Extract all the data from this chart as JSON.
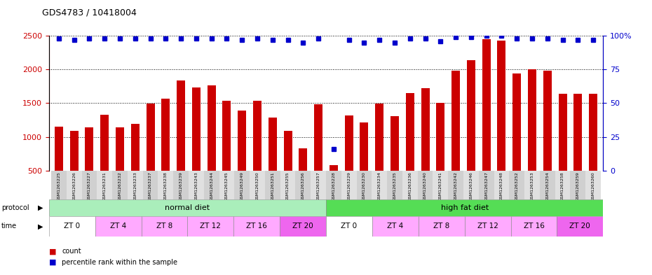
{
  "title": "GDS4783 / 10418004",
  "samples": [
    "GSM1263225",
    "GSM1263226",
    "GSM1263227",
    "GSM1263231",
    "GSM1263232",
    "GSM1263233",
    "GSM1263237",
    "GSM1263238",
    "GSM1263239",
    "GSM1263243",
    "GSM1263244",
    "GSM1263245",
    "GSM1263249",
    "GSM1263250",
    "GSM1263251",
    "GSM1263255",
    "GSM1263256",
    "GSM1263257",
    "GSM1263228",
    "GSM1263229",
    "GSM1263230",
    "GSM1263234",
    "GSM1263235",
    "GSM1263236",
    "GSM1263240",
    "GSM1263241",
    "GSM1263242",
    "GSM1263246",
    "GSM1263247",
    "GSM1263248",
    "GSM1263252",
    "GSM1263253",
    "GSM1263254",
    "GSM1263258",
    "GSM1263259",
    "GSM1263260"
  ],
  "counts": [
    1150,
    1090,
    1140,
    1330,
    1140,
    1190,
    1490,
    1570,
    1840,
    1730,
    1760,
    1530,
    1390,
    1540,
    1290,
    1090,
    830,
    1480,
    580,
    1320,
    1210,
    1490,
    1310,
    1650,
    1720,
    1500,
    1980,
    2140,
    2450,
    2430,
    1940,
    2000,
    1980,
    1640,
    1640,
    1640
  ],
  "percentiles": [
    98,
    97,
    98,
    98,
    98,
    98,
    98,
    98,
    98,
    98,
    98,
    98,
    97,
    98,
    97,
    97,
    95,
    98,
    16,
    97,
    95,
    97,
    95,
    98,
    98,
    96,
    99,
    99,
    100,
    100,
    98,
    98,
    98,
    97,
    97,
    97
  ],
  "bar_color": "#cc0000",
  "dot_color": "#0000cc",
  "ylim_left": [
    500,
    2500
  ],
  "ylim_right": [
    0,
    100
  ],
  "yticks_left": [
    500,
    1000,
    1500,
    2000,
    2500
  ],
  "yticks_right": [
    0,
    25,
    50,
    75,
    100
  ],
  "left_axis_color": "#cc0000",
  "right_axis_color": "#0000cc",
  "bg_color": "#ffffff"
}
